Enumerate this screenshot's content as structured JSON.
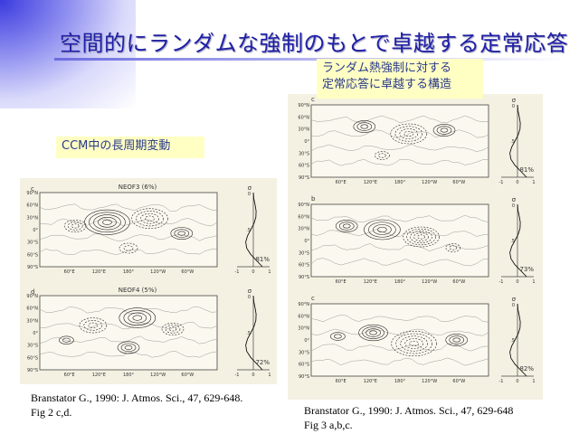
{
  "slide": {
    "title": "空間的にランダムな強制のもとで卓越する定常応答",
    "callout_ccm": "CCM中の長周期変動",
    "callout_random_line1": "ランダム熱強制に対する",
    "callout_random_line2": "定常応答に卓越する構造"
  },
  "left_figure": {
    "panels": [
      {
        "letter": "c",
        "name": "NEOF3",
        "percent_label": "(6%)",
        "profile_percent": "81%"
      },
      {
        "letter": "d",
        "name": "NEOF4",
        "percent_label": "(5%)",
        "profile_percent": "72%"
      }
    ],
    "caption_line1": "Branstator G., 1990: J. Atmos. Sci., 47, 629-648.",
    "caption_line2": "Fig 2 c,d."
  },
  "right_figure": {
    "panels": [
      {
        "letter": "c",
        "profile_percent": "81%"
      },
      {
        "letter": "b",
        "profile_percent": "73%"
      },
      {
        "letter": "c",
        "profile_percent": "82%"
      }
    ],
    "caption_line1": "Branstator G., 1990: J. Atmos. Sci., 47, 629-648",
    "caption_line2": "Fig 3 a,b,c."
  },
  "axes": {
    "lat_labels": [
      "90°N",
      "60°N",
      "30°N",
      "0°",
      "30°S",
      "60°S",
      "90°S"
    ],
    "lon_labels": [
      "60°E",
      "120°E",
      "180°",
      "120°W",
      "60°W"
    ],
    "sigma_symbol": "σ",
    "sigma_ticks": [
      "0",
      ".5",
      "1"
    ],
    "profile_x_ticks": [
      "-1",
      "0",
      "1"
    ]
  },
  "colors": {
    "title": "#1f1fa6",
    "callout_bg": "#ffffc4",
    "callout_text": "#2a3a8a",
    "figure_bg": "#f4f1e2"
  }
}
